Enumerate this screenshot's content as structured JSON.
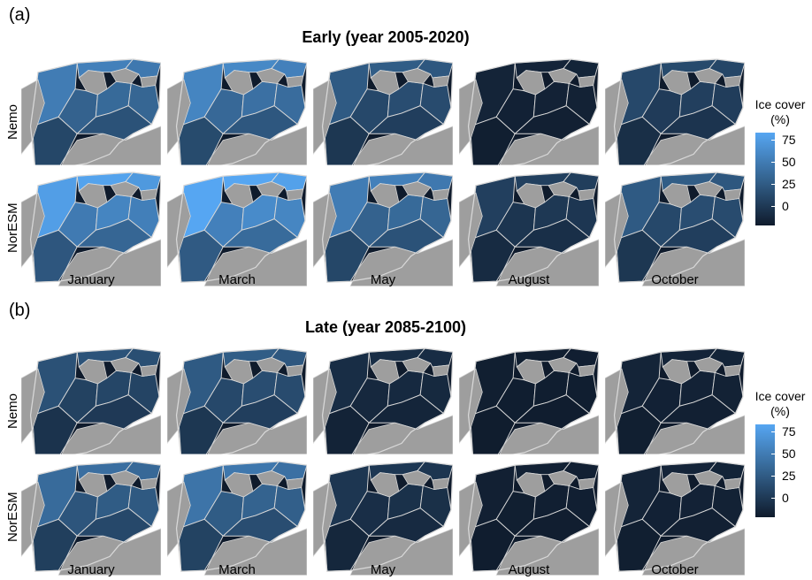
{
  "chart_data": [
    {
      "type": "heatmap",
      "panel": "(a)",
      "title": "Early (year 2005-2020)",
      "rows": [
        "Nemo",
        "NorESM"
      ],
      "columns": [
        "January",
        "March",
        "May",
        "August",
        "October"
      ],
      "ice_cover_level": [
        [
          0.55,
          0.6,
          0.35,
          0.05,
          0.25
        ],
        [
          0.75,
          0.8,
          0.55,
          0.2,
          0.35
        ]
      ]
    },
    {
      "type": "heatmap",
      "panel": "(b)",
      "title": "Late (year 2085-2100)",
      "rows": [
        "Nemo",
        "NorESM"
      ],
      "columns": [
        "January",
        "March",
        "May",
        "August",
        "October"
      ],
      "ice_cover_level": [
        [
          0.3,
          0.35,
          0.1,
          0.02,
          0.05
        ],
        [
          0.45,
          0.5,
          0.15,
          0.03,
          0.05
        ]
      ]
    }
  ],
  "legend": {
    "title_line1": "Ice cover",
    "title_line2": "(%)",
    "ticks": [
      "75",
      "50",
      "25",
      "0"
    ],
    "colors": {
      "low": "#0f1b2c",
      "mid": "#34638f",
      "high": "#56a6f2",
      "land": "#9e9e9e",
      "border": "#d8d8d8"
    }
  }
}
